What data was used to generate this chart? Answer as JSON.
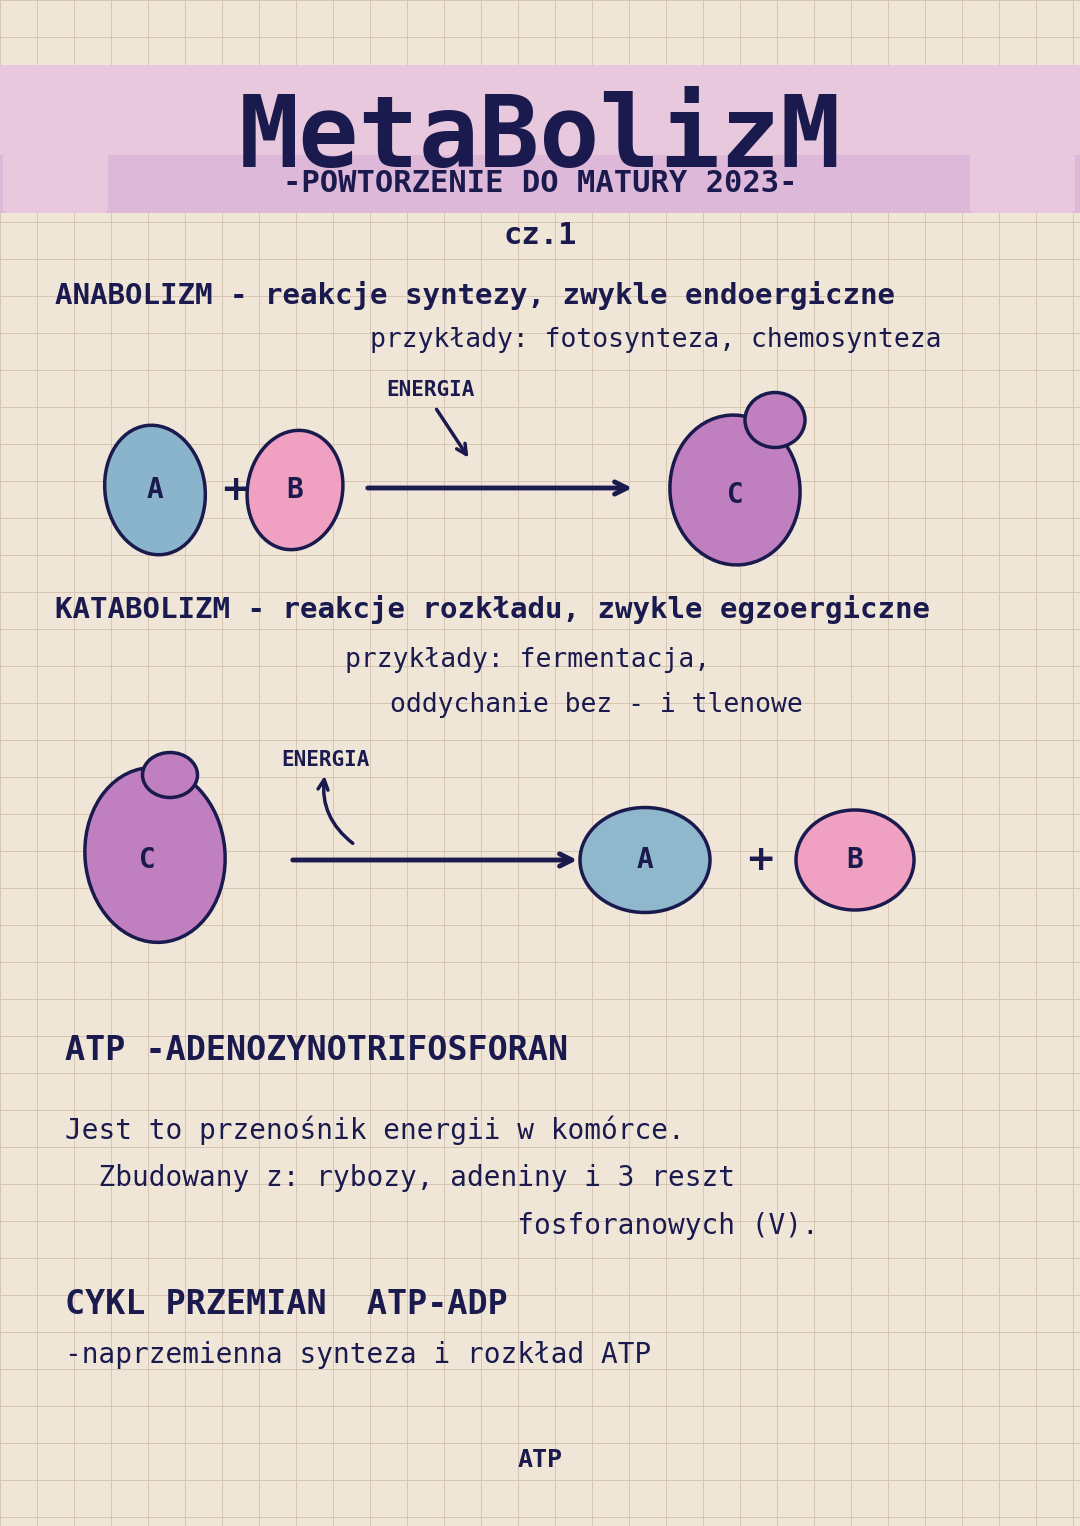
{
  "bg_color": "#f0e6d8",
  "grid_color": "#d8c4b2",
  "dark_navy": "#1a1a4e",
  "title": "MetaBolizM",
  "subtitle": "-POWTORZENIE DO MATURY 2023-",
  "part": "cz.1",
  "title_banner_color": "#e8c8dc",
  "subtitle_banner_color": "#ddb8d8",
  "anabolizm_line1": "ANABOLIZM - reakcje syntezy, zwykle endoergiczne",
  "anabolizm_line2": "przykłady: fotosynteza, chemosynteza",
  "energia_anab": "ENERGIA",
  "katabolizm_line1": "KATABOLIZM - reakcje rozkładu, zwykle egzoergiczne",
  "katabolizm_line2": "przykłady: fermentacja,",
  "katabolizm_line3": "oddychanie bez - i tlenowe",
  "energia_katab": "ENERGIA",
  "atp_line1": "ATP -ADENOZYNOTRIFOSFORAN",
  "jest_line1": "Jest to przenośnik energii w komórce.",
  "jest_line2": "  Zbudowany z: rybozy, adeniny i 3 reszt",
  "jest_line3": "                           fosforanowych (V).",
  "cykl_line1": "CYKL PRZEMIAN  ATP-ADP",
  "cykl_line2": "-naprzemienna synteza i rozkład ATP",
  "atp_label": "ATP",
  "blob_a_color_anab": "#8ab4cc",
  "blob_b_color_anab": "#f0a0c0",
  "blob_c_color_anab": "#c080c0",
  "blob_c_color_katab": "#c080c0",
  "blob_a_color_katab": "#90b8cc",
  "blob_b_color_katab": "#f0a0c0",
  "blob_border": "#1a1a4e",
  "lw_blob": 2.5
}
